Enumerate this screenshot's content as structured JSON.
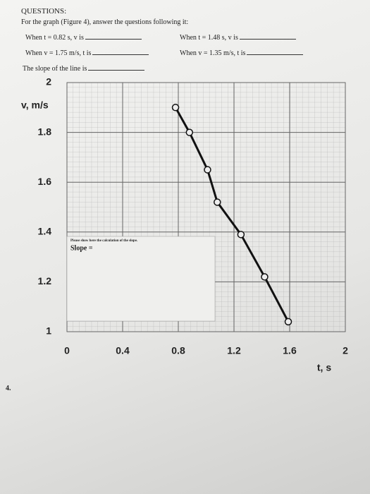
{
  "questions": {
    "heading": "QUESTIONS:",
    "intro": "For the graph (Figure 4), answer the questions following it:",
    "items": [
      "When t = 0.82 s, v is",
      "When t = 1.48 s, v is",
      "When v = 1.75 m/s, t is",
      "When v = 1.35 m/s, t is",
      "The slope of the line is"
    ]
  },
  "work_box": {
    "instruction": "Please show here the calculation of the slope.",
    "label": "Slope ="
  },
  "figure_number": "4.",
  "chart_data": {
    "type": "line",
    "x_label": "t, s",
    "y_label": "v, m/s",
    "x": [
      0.78,
      0.88,
      1.01,
      1.08,
      1.25,
      1.42,
      1.59
    ],
    "values": [
      1.9,
      1.8,
      1.65,
      1.52,
      1.39,
      1.22,
      1.04
    ],
    "color": "#111111",
    "xlim": [
      0,
      2
    ],
    "xticks": [
      0,
      0.4,
      0.8,
      1.2,
      1.6,
      2
    ],
    "ylim": [
      1,
      2
    ],
    "yticks": [
      1,
      1.2,
      1.4,
      1.6,
      1.8,
      2
    ],
    "grid": true
  }
}
